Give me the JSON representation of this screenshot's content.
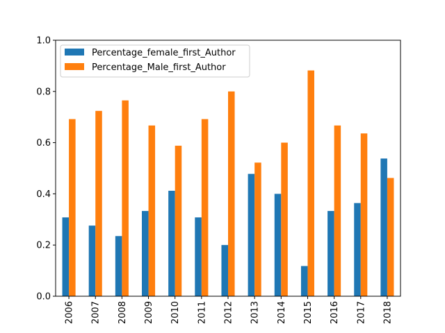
{
  "chart_data": {
    "type": "bar",
    "categories": [
      "2006",
      "2007",
      "2008",
      "2009",
      "2010",
      "2011",
      "2012",
      "2013",
      "2014",
      "2015",
      "2016",
      "2017",
      "2018"
    ],
    "series": [
      {
        "name": "Percentage_female_first_Author",
        "color": "#1f77b4",
        "values": [
          0.308,
          0.276,
          0.235,
          0.333,
          0.412,
          0.308,
          0.2,
          0.478,
          0.4,
          0.118,
          0.333,
          0.364,
          0.538
        ]
      },
      {
        "name": "Percentage_Male_first_Author",
        "color": "#ff7f0e",
        "values": [
          0.692,
          0.724,
          0.765,
          0.667,
          0.588,
          0.692,
          0.8,
          0.522,
          0.6,
          0.882,
          0.667,
          0.636,
          0.462
        ]
      }
    ],
    "ylim": [
      0,
      1.0
    ],
    "yticks": [
      "0.0",
      "0.2",
      "0.4",
      "0.6",
      "0.8",
      "1.0"
    ],
    "title": "",
    "xlabel": "",
    "ylabel": "",
    "legend_position": "top-left",
    "grid": false
  }
}
